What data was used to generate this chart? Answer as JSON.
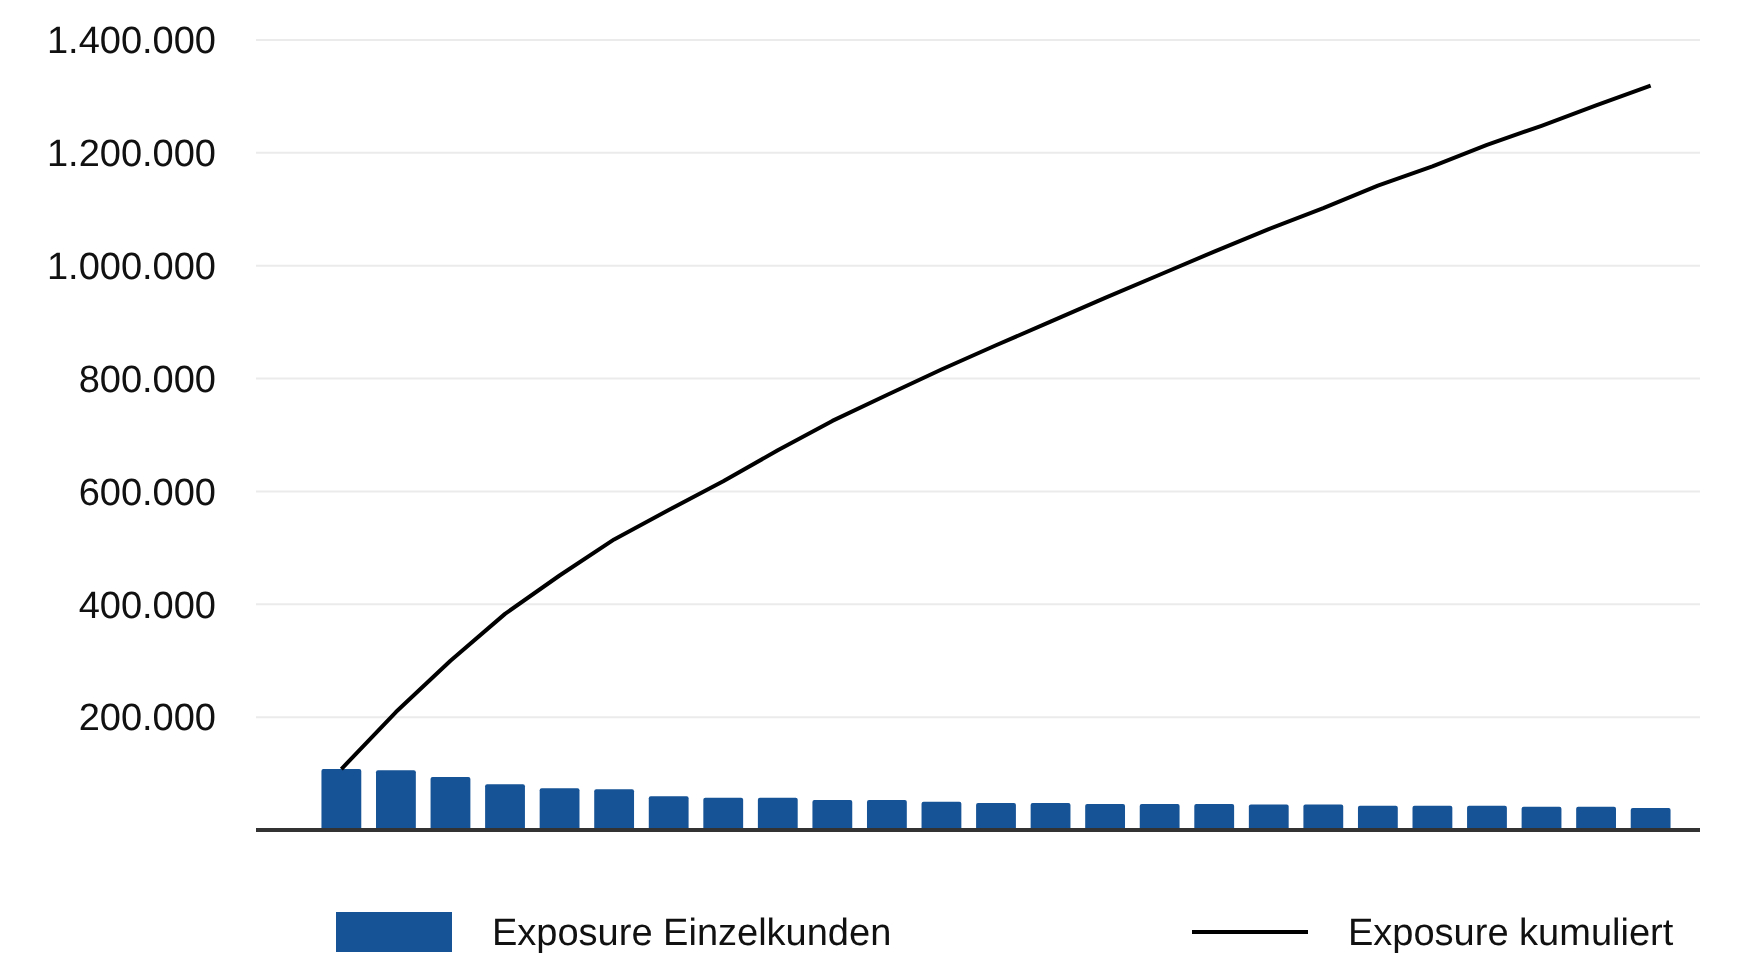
{
  "chart_data": {
    "type": "bar",
    "categories": [
      null,
      null,
      null,
      null,
      null,
      null,
      null,
      null,
      null,
      null,
      null,
      null,
      null,
      null,
      null,
      null,
      null,
      null,
      null,
      null,
      null,
      null,
      null,
      null,
      null
    ],
    "series": [
      {
        "name": "Exposure Einzelkunden",
        "color": "#165396",
        "values": [
          108000,
          106000,
          94000,
          81000,
          74000,
          72000,
          60000,
          57000,
          57000,
          53000,
          53000,
          50000,
          48000,
          48000,
          46000,
          46000,
          46000,
          45000,
          45000,
          43000,
          43000,
          43000,
          41000,
          41000,
          39000
        ]
      },
      {
        "name": "Exposure kumuliert",
        "type": "line",
        "color": "#000000",
        "values": [
          108000,
          209000,
          300000,
          383000,
          451000,
          515000,
          567000,
          618000,
          673000,
          725000,
          771000,
          816000,
          859000,
          901000,
          943000,
          984000,
          1025000,
          1065000,
          1102000,
          1142000,
          1176000,
          1214000,
          1248000,
          1284000,
          1319000
        ]
      }
    ],
    "ylim": [
      0,
      1400000
    ],
    "yticks": [
      {
        "value": 0,
        "label": null
      },
      {
        "value": 200000,
        "label": "200.000"
      },
      {
        "value": 400000,
        "label": "400.000"
      },
      {
        "value": 600000,
        "label": "600.000"
      },
      {
        "value": 800000,
        "label": "800.000"
      },
      {
        "value": 1000000,
        "label": "1.000.000"
      },
      {
        "value": 1200000,
        "label": "1.200.000"
      },
      {
        "value": 1400000,
        "label": "1.400.000"
      }
    ],
    "grid": "y",
    "legend": "bottom",
    "marker": "none",
    "line_style": "solid"
  }
}
